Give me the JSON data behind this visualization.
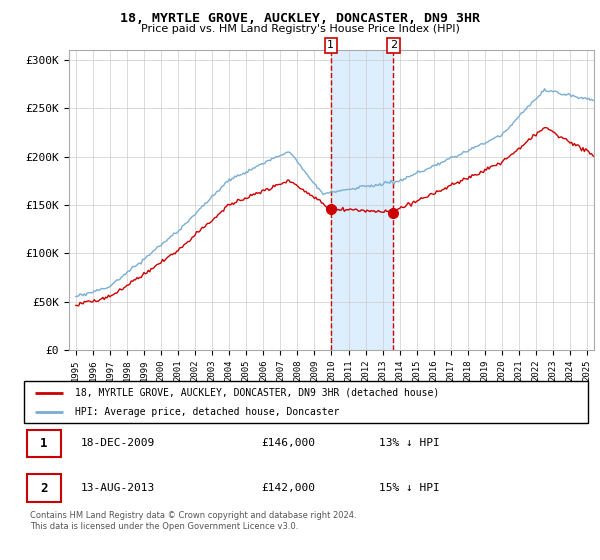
{
  "title": "18, MYRTLE GROVE, AUCKLEY, DONCASTER, DN9 3HR",
  "subtitle": "Price paid vs. HM Land Registry's House Price Index (HPI)",
  "legend_line1": "18, MYRTLE GROVE, AUCKLEY, DONCASTER, DN9 3HR (detached house)",
  "legend_line2": "HPI: Average price, detached house, Doncaster",
  "footnote1": "Contains HM Land Registry data © Crown copyright and database right 2024.",
  "footnote2": "This data is licensed under the Open Government Licence v3.0.",
  "sale1_label": "1",
  "sale1_date": "18-DEC-2009",
  "sale1_price": "£146,000",
  "sale1_hpi": "13% ↓ HPI",
  "sale2_label": "2",
  "sale2_date": "13-AUG-2013",
  "sale2_price": "£142,000",
  "sale2_hpi": "15% ↓ HPI",
  "sale1_x": 2009.96,
  "sale2_x": 2013.62,
  "sale1_y": 146000,
  "sale2_y": 142000,
  "hpi_color": "#7aadd4",
  "price_color": "#cc0000",
  "highlight_color": "#ddeeff",
  "highlight_x1": 2009.96,
  "highlight_x2": 2013.62,
  "ylim": [
    0,
    310000
  ],
  "xlim_left": 1994.6,
  "xlim_right": 2025.4,
  "yticks": [
    0,
    50000,
    100000,
    150000,
    200000,
    250000,
    300000
  ],
  "ylabels": [
    "£0",
    "£50K",
    "£100K",
    "£150K",
    "£200K",
    "£250K",
    "£300K"
  ]
}
